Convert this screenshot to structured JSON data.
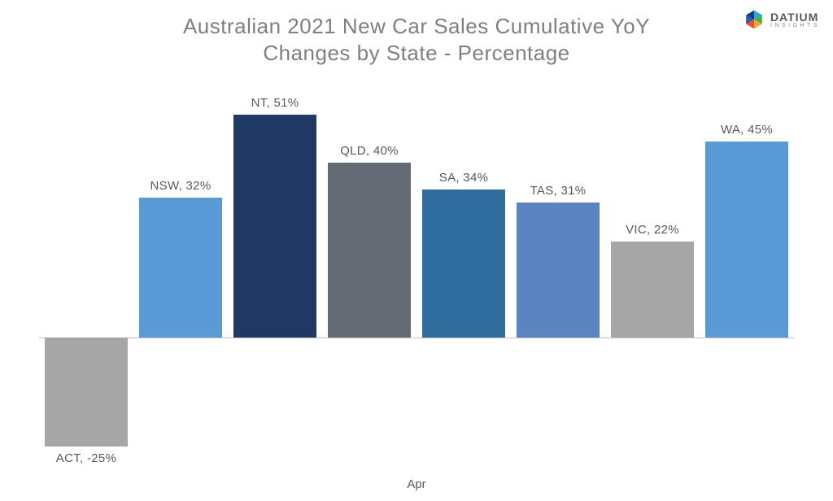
{
  "title_line1": "Australian 2021 New Car Sales Cumulative YoY",
  "title_line2": "Changes by State - Percentage",
  "title_fontsize": 26,
  "title_color": "#7f7f7f",
  "logo": {
    "main": "DATIUM",
    "sub": "INSIGHTS",
    "main_fontsize": 14,
    "sub_fontsize": 7
  },
  "chart": {
    "type": "bar",
    "x_axis_label": "Apr",
    "x_axis_fontsize": 15,
    "baseline_color": "#bfbfbf",
    "label_fontsize": 15,
    "label_color": "#595959",
    "ylim": [
      -30,
      55
    ],
    "bar_width_ratio": 0.88,
    "background_color": "#ffffff",
    "categories": [
      "ACT",
      "NSW",
      "NT",
      "QLD",
      "SA",
      "TAS",
      "VIC",
      "WA"
    ],
    "values": [
      -25,
      32,
      51,
      40,
      34,
      31,
      22,
      45
    ],
    "bar_colors": [
      "#a6a6a6",
      "#5b9bd5",
      "#1f3864",
      "#636a73",
      "#2e6d9e",
      "#5a85c1",
      "#a6a6a6",
      "#5b9bd5"
    ],
    "data_label_format": "{cat}, {val}%"
  }
}
